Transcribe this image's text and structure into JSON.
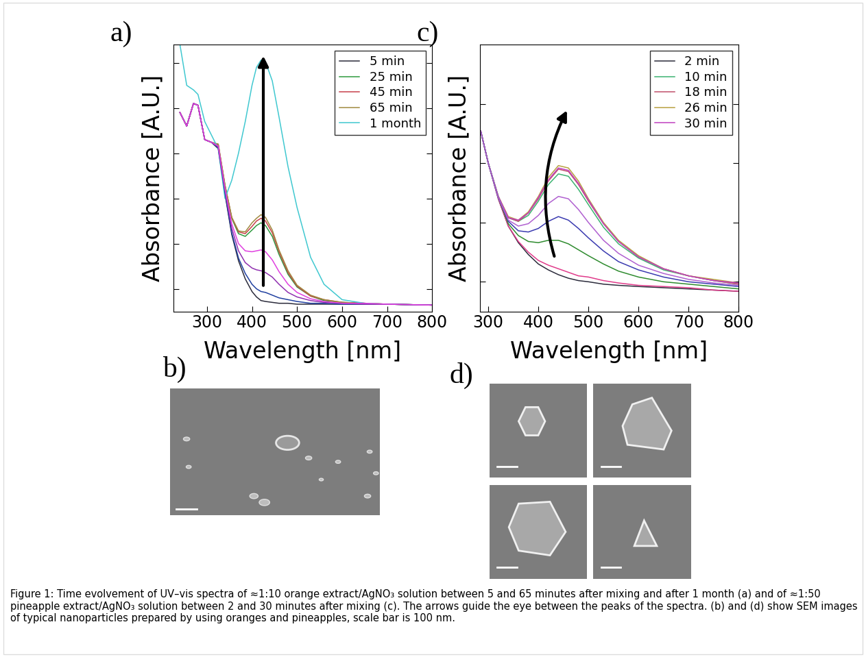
{
  "chart_data": [
    {
      "panel": "a)",
      "type": "line",
      "xlabel": "Wavelength [nm]",
      "ylabel": "Absorbance [A.U.]",
      "x": [
        240,
        255,
        270,
        280,
        295,
        310,
        325,
        340,
        355,
        370,
        385,
        400,
        410,
        420,
        430,
        445,
        460,
        480,
        500,
        530,
        560,
        600,
        650,
        700,
        800
      ],
      "xlim": [
        225,
        800
      ],
      "xticks": [
        300,
        400,
        500,
        600,
        700,
        800
      ],
      "ylim": [
        0,
        2.95
      ],
      "yticks": [
        0.25,
        0.75,
        1.25,
        1.75,
        2.25,
        2.75
      ],
      "tick_labels": "x",
      "legend": "upper right",
      "series": [
        {
          "name": "5 min",
          "color": "#2b2b3b",
          "values": [
            2.2,
            2.05,
            2.3,
            2.28,
            1.9,
            1.87,
            1.8,
            1.3,
            0.85,
            0.56,
            0.36,
            0.22,
            0.16,
            0.12,
            0.11,
            0.1,
            0.09,
            0.09,
            0.08,
            0.08,
            0.08,
            0.08,
            0.08,
            0.08,
            0.07
          ]
        },
        {
          "name": "25 min",
          "color": "#2e9a3e",
          "values": [
            2.2,
            2.05,
            2.3,
            2.28,
            1.9,
            1.87,
            1.84,
            1.39,
            1.03,
            0.86,
            0.83,
            0.9,
            0.95,
            0.98,
            0.95,
            0.83,
            0.63,
            0.41,
            0.27,
            0.17,
            0.12,
            0.1,
            0.09,
            0.08,
            0.07
          ]
        },
        {
          "name": "45 min",
          "color": "#c8404a",
          "values": [
            2.2,
            2.05,
            2.3,
            2.28,
            1.9,
            1.87,
            1.85,
            1.39,
            1.04,
            0.88,
            0.86,
            0.94,
            1.0,
            1.03,
            1.0,
            0.87,
            0.66,
            0.43,
            0.28,
            0.17,
            0.13,
            0.1,
            0.09,
            0.08,
            0.07
          ]
        },
        {
          "name": "65 min",
          "color": "#a08a40",
          "values": [
            2.2,
            2.05,
            2.3,
            2.28,
            1.9,
            1.87,
            1.85,
            1.4,
            1.04,
            0.89,
            0.88,
            0.98,
            1.03,
            1.07,
            1.04,
            0.9,
            0.68,
            0.45,
            0.29,
            0.18,
            0.13,
            0.1,
            0.09,
            0.08,
            0.07
          ]
        },
        {
          "name": "1 month",
          "color": "#40c8d0",
          "values": [
            2.95,
            2.5,
            2.45,
            2.4,
            2.1,
            1.95,
            1.8,
            1.25,
            1.45,
            1.75,
            2.1,
            2.5,
            2.7,
            2.78,
            2.76,
            2.55,
            2.15,
            1.6,
            1.15,
            0.6,
            0.3,
            0.13,
            0.09,
            0.08,
            0.07
          ]
        },
        {
          "name": null,
          "color": "#2040a0",
          "values": [
            2.2,
            2.05,
            2.3,
            2.28,
            1.9,
            1.87,
            1.81,
            1.31,
            0.87,
            0.59,
            0.42,
            0.3,
            0.25,
            0.22,
            0.21,
            0.18,
            0.15,
            0.13,
            0.11,
            0.09,
            0.09,
            0.08,
            0.08,
            0.08,
            0.07
          ]
        },
        {
          "name": null,
          "color": "#9030b0",
          "values": [
            2.2,
            2.05,
            2.3,
            2.28,
            1.9,
            1.87,
            1.82,
            1.34,
            0.92,
            0.67,
            0.54,
            0.48,
            0.46,
            0.45,
            0.43,
            0.38,
            0.3,
            0.21,
            0.16,
            0.12,
            0.1,
            0.09,
            0.08,
            0.08,
            0.07
          ]
        },
        {
          "name": null,
          "color": "#e040e0",
          "values": [
            2.2,
            2.05,
            2.3,
            2.28,
            1.9,
            1.87,
            1.83,
            1.36,
            0.97,
            0.75,
            0.67,
            0.66,
            0.67,
            0.68,
            0.66,
            0.57,
            0.44,
            0.3,
            0.21,
            0.14,
            0.11,
            0.09,
            0.09,
            0.08,
            0.07
          ]
        }
      ]
    },
    {
      "panel": "c)",
      "type": "line",
      "xlabel": "Wavelength [nm]",
      "ylabel": "Absorbance [A.U.]",
      "x": [
        285,
        300,
        320,
        340,
        360,
        380,
        400,
        420,
        440,
        460,
        480,
        500,
        530,
        560,
        600,
        650,
        700,
        750,
        800
      ],
      "xlim": [
        283,
        800
      ],
      "xticks": [
        300,
        400,
        500,
        600,
        700,
        800
      ],
      "ylim": [
        0,
        2.25
      ],
      "yticks": [
        0.25,
        0.75,
        1.25,
        1.75
      ],
      "tick_labels": "x",
      "legend": "upper right",
      "series": [
        {
          "name": "2 min",
          "color": "#2b2b3b",
          "values": [
            1.52,
            1.25,
            0.95,
            0.72,
            0.58,
            0.48,
            0.4,
            0.35,
            0.31,
            0.28,
            0.26,
            0.25,
            0.23,
            0.22,
            0.21,
            0.2,
            0.19,
            0.18,
            0.17
          ]
        },
        {
          "name": "10 min",
          "color": "#3cb371",
          "values": [
            1.52,
            1.25,
            0.97,
            0.79,
            0.76,
            0.81,
            0.93,
            1.07,
            1.16,
            1.14,
            1.03,
            0.9,
            0.71,
            0.57,
            0.45,
            0.35,
            0.3,
            0.26,
            0.23
          ]
        },
        {
          "name": "18 min",
          "color": "#c0506a",
          "values": [
            1.52,
            1.25,
            0.97,
            0.79,
            0.76,
            0.83,
            0.95,
            1.1,
            1.2,
            1.18,
            1.07,
            0.93,
            0.74,
            0.59,
            0.46,
            0.36,
            0.3,
            0.26,
            0.23
          ]
        },
        {
          "name": "26 min",
          "color": "#b8a040",
          "values": [
            1.52,
            1.25,
            0.97,
            0.8,
            0.77,
            0.84,
            0.97,
            1.13,
            1.23,
            1.21,
            1.1,
            0.95,
            0.75,
            0.6,
            0.47,
            0.36,
            0.3,
            0.27,
            0.24
          ]
        },
        {
          "name": "30 min",
          "color": "#c040c0",
          "values": [
            1.52,
            1.25,
            0.97,
            0.79,
            0.77,
            0.83,
            0.96,
            1.11,
            1.21,
            1.19,
            1.08,
            0.94,
            0.74,
            0.59,
            0.46,
            0.36,
            0.3,
            0.26,
            0.24
          ]
        },
        {
          "name": null,
          "color": "#e03a8a",
          "values": [
            1.52,
            1.25,
            0.95,
            0.72,
            0.59,
            0.5,
            0.43,
            0.39,
            0.36,
            0.33,
            0.3,
            0.29,
            0.26,
            0.24,
            0.22,
            0.21,
            0.2,
            0.18,
            0.17
          ]
        },
        {
          "name": null,
          "color": "#2e8b2e",
          "values": [
            1.52,
            1.25,
            0.96,
            0.74,
            0.64,
            0.59,
            0.58,
            0.6,
            0.6,
            0.57,
            0.52,
            0.47,
            0.4,
            0.34,
            0.29,
            0.25,
            0.23,
            0.21,
            0.19
          ]
        },
        {
          "name": null,
          "color": "#3a3ab0",
          "values": [
            1.52,
            1.25,
            0.96,
            0.76,
            0.68,
            0.67,
            0.7,
            0.76,
            0.8,
            0.77,
            0.7,
            0.62,
            0.51,
            0.42,
            0.35,
            0.29,
            0.25,
            0.23,
            0.21
          ]
        },
        {
          "name": null,
          "color": "#b060d0",
          "values": [
            1.52,
            1.25,
            0.96,
            0.77,
            0.72,
            0.74,
            0.81,
            0.91,
            0.97,
            0.95,
            0.86,
            0.75,
            0.6,
            0.49,
            0.39,
            0.32,
            0.27,
            0.24,
            0.22
          ]
        }
      ]
    }
  ],
  "images": [
    {
      "panel": "b)"
    },
    {
      "panel": "d)"
    }
  ],
  "caption": "Figure 1: Time evolvement of UV–vis spectra of ≈1:10 orange extract/AgNO₃ solution between 5 and 65 minutes after mixing and after 1 month (a) and of ≈1:50 pineapple extract/AgNO₃ solution between 2 and 30 minutes after mixing (c). The arrows guide the eye between the peaks of the spectra. (b) and (d) show SEM images of typical nanoparticles prepared by using oranges and pineapples, scale bar is 100 nm."
}
